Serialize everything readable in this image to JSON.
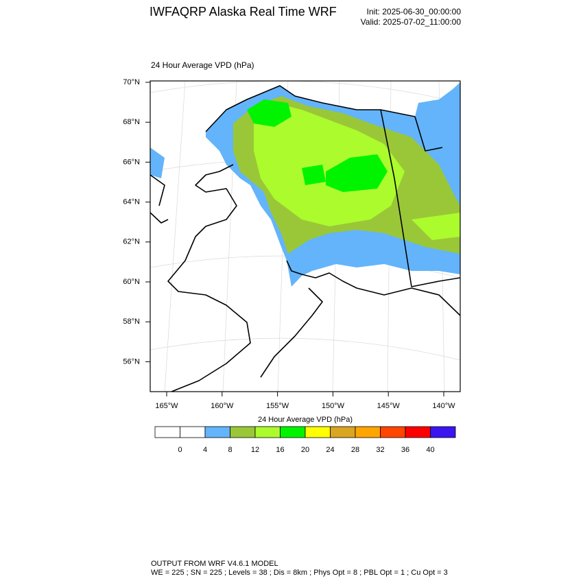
{
  "header": {
    "title": "IWFAQRP Alaska Real Time WRF",
    "init": "Init: 2025-06-30_00:00:00",
    "valid": "Valid: 2025-07-02_11:00:00"
  },
  "plot": {
    "title": "24 Hour Average VPD   (hPa)",
    "lat_labels": [
      "70°N",
      "68°N",
      "66°N",
      "64°N",
      "62°N",
      "60°N",
      "58°N",
      "56°N"
    ],
    "lon_labels": [
      "165°W",
      "160°W",
      "155°W",
      "150°W",
      "145°W",
      "140°W"
    ]
  },
  "colorbar": {
    "title": "24 Hour Average VPD  (hPa)",
    "levels": [
      0,
      4,
      8,
      12,
      16,
      20,
      24,
      28,
      32,
      36,
      40
    ],
    "colors": [
      "#ffffff",
      "#ffffff",
      "#63b4fa",
      "#9ac738",
      "#acfb2d",
      "#00f400",
      "#ffff00",
      "#daa520",
      "#ffa500",
      "#ff4500",
      "#ff0000",
      "#3c14f0"
    ]
  },
  "footer": {
    "line1": "OUTPUT FROM WRF V4.6.1 MODEL",
    "line2": "WE = 225 ; SN = 225 ; Levels = 38 ; Dis = 8km ; Phys Opt = 8 ; PBL Opt = 1 ; Cu Opt = 3"
  }
}
